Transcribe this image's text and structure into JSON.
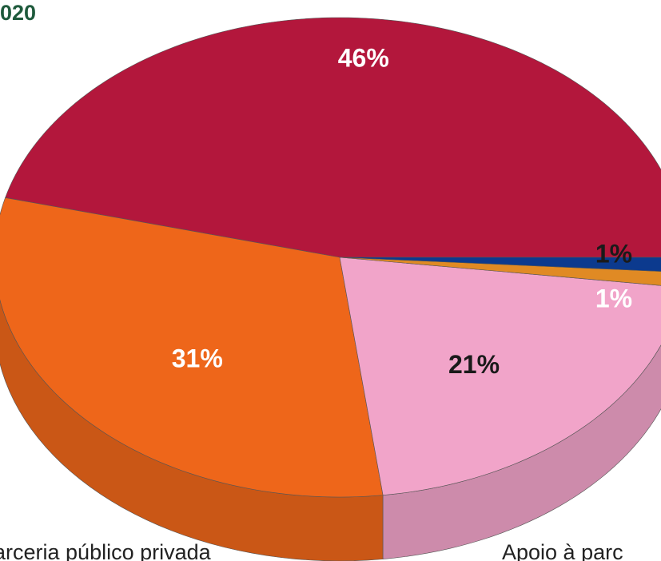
{
  "chart_data": {
    "type": "pie",
    "title": "020",
    "categories": [
      null,
      "arceria público privada",
      "Apoio à parc",
      null,
      null
    ],
    "values": [
      46,
      31,
      21,
      1,
      1
    ],
    "value_labels": [
      "46%",
      "31%",
      "21%",
      "1%",
      "1%"
    ],
    "colors": [
      "#b3173c",
      "#ee661a",
      "#f1a4c9",
      "#e08a24",
      "#0c3a8e"
    ],
    "label_colors": [
      "#ffffff",
      "#ffffff",
      "#1a1a1a",
      "#1a1a1a",
      "#ffffff"
    ]
  }
}
